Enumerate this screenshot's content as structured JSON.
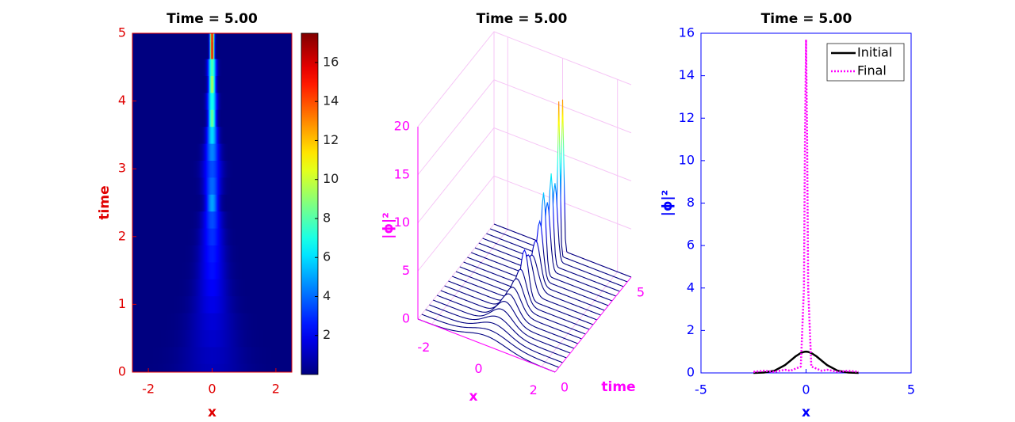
{
  "chart_data": [
    {
      "type": "heatmap",
      "title": "Time = 5.00",
      "xlabel": "x",
      "ylabel": "time",
      "xlim": [
        -2.5,
        2.5
      ],
      "xticks": [
        -2,
        0,
        2
      ],
      "ylim": [
        0,
        5
      ],
      "yticks": [
        0,
        1,
        2,
        3,
        4,
        5
      ],
      "y": [
        0,
        0.25,
        0.5,
        0.75,
        1,
        1.25,
        1.5,
        1.75,
        2,
        2.25,
        2.5,
        2.75,
        3,
        3.25,
        3.5,
        3.75,
        4,
        4.25,
        4.5,
        4.75,
        5
      ],
      "values": [
        1,
        1.1,
        1.3,
        1.5,
        1.8,
        2.1,
        2.4,
        2.6,
        3,
        3.5,
        5,
        4,
        3.5,
        4.5,
        6,
        8.5,
        7,
        9.5,
        8,
        16,
        15.7
      ],
      "clim": [
        0,
        17.5
      ],
      "cticks": [
        2,
        4,
        6,
        8,
        10,
        12,
        14,
        16
      ],
      "axis_color": "#e00000"
    },
    {
      "type": "waterfall",
      "title": "Time = 5.00",
      "xlabel": "x",
      "ylabel": "time",
      "zlabel": "|ϕ|²",
      "xlim": [
        -2.5,
        2.5
      ],
      "xticks": [
        -2,
        0,
        2
      ],
      "ylim": [
        0,
        5
      ],
      "yticks": [
        0,
        5
      ],
      "zlim": [
        0,
        20
      ],
      "zticks": [
        0,
        5,
        10,
        15,
        20
      ],
      "y": [
        0,
        0.25,
        0.5,
        0.75,
        1,
        1.25,
        1.5,
        1.75,
        2,
        2.25,
        2.5,
        2.75,
        3,
        3.25,
        3.5,
        3.75,
        4,
        4.25,
        4.5,
        4.75,
        5
      ],
      "values": [
        1,
        1.1,
        1.3,
        1.5,
        1.8,
        2.1,
        2.4,
        2.6,
        3,
        3.5,
        5,
        4,
        3.5,
        4.5,
        6,
        8.5,
        7,
        9.5,
        8,
        16,
        15.7
      ],
      "axis_color": "#ff00ff"
    },
    {
      "type": "line",
      "title": "Time = 5.00",
      "xlabel": "x",
      "ylabel": "|ϕ|²",
      "xlim": [
        -5,
        5
      ],
      "xticks": [
        -5,
        0,
        5
      ],
      "ylim": [
        0,
        16
      ],
      "yticks": [
        0,
        2,
        4,
        6,
        8,
        10,
        12,
        14,
        16
      ],
      "x": [
        -2.5,
        -2,
        -1.5,
        -1,
        -0.75,
        -0.5,
        -0.25,
        -0.1,
        -0.05,
        0,
        0.05,
        0.1,
        0.25,
        0.5,
        0.75,
        1,
        1.5,
        2,
        2.5
      ],
      "series": [
        {
          "name": "Initial",
          "color": "#000000",
          "line_style": "solid",
          "values": [
            0.002,
            0.018,
            0.105,
            0.368,
            0.57,
            0.779,
            0.939,
            0.99,
            0.998,
            1,
            0.998,
            0.99,
            0.939,
            0.779,
            0.57,
            0.368,
            0.105,
            0.018,
            0.002
          ]
        },
        {
          "name": "Final",
          "color": "#ff00ff",
          "line_style": "dotted",
          "values": [
            0.05,
            0.1,
            0.05,
            0.15,
            0.1,
            0.2,
            0.3,
            4,
            11,
            15.7,
            11,
            4,
            0.3,
            0.2,
            0.1,
            0.15,
            0.05,
            0.1,
            0.05
          ]
        }
      ],
      "legend": "upper right",
      "axis_color": "#0000ff"
    }
  ]
}
